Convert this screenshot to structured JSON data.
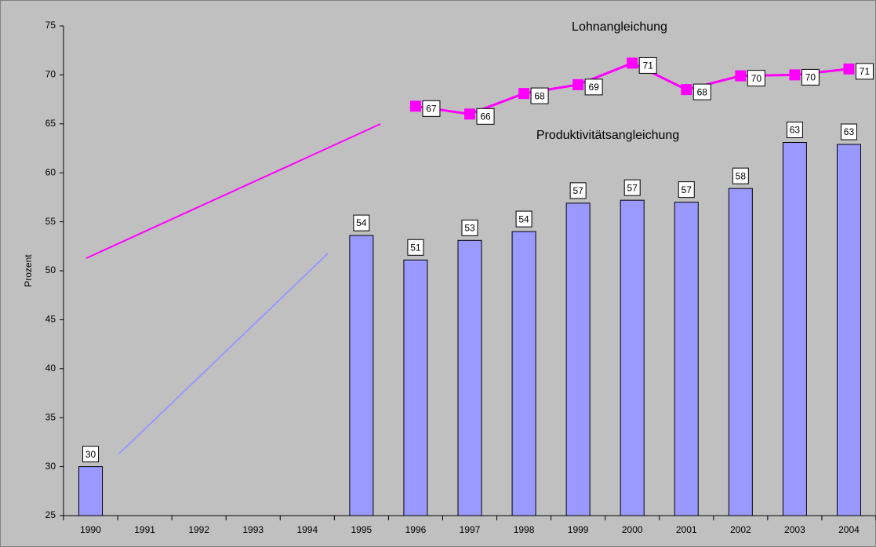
{
  "chart_data": {
    "type": "bar",
    "y_label": "Prozent",
    "annotations": [
      "Lohnangleichung",
      "Produktivitätsangleichung"
    ],
    "categories": [
      "1990",
      "1991",
      "1992",
      "1993",
      "1994",
      "1995",
      "1996",
      "1997",
      "1998",
      "1999",
      "2000",
      "2001",
      "2002",
      "2003",
      "2004"
    ],
    "ylim": [
      25,
      75
    ],
    "yticks": [
      25,
      30,
      35,
      40,
      45,
      50,
      55,
      60,
      65,
      70,
      75
    ],
    "series": [
      {
        "name": "Produktivitätsangleichung",
        "type": "bar",
        "color": "#9999ff",
        "values": [
          30,
          null,
          null,
          null,
          null,
          53.6,
          51.1,
          53.1,
          54,
          56.9,
          57.2,
          57,
          58.4,
          63.1,
          62.9
        ],
        "value_labels": [
          "30",
          null,
          null,
          null,
          null,
          "54",
          "51",
          "53",
          "54",
          "57",
          "57",
          "57",
          "58",
          "63",
          "63"
        ]
      },
      {
        "name": "Lohnangleichung",
        "type": "line",
        "color": "#ff00ff",
        "values": [
          null,
          null,
          null,
          null,
          null,
          null,
          66.8,
          66,
          68.1,
          69,
          71.2,
          68.5,
          69.9,
          70,
          70.6
        ],
        "value_labels": [
          null,
          null,
          null,
          null,
          null,
          null,
          "67",
          "66",
          "68",
          "69",
          "71",
          "68",
          "70",
          "70",
          "71"
        ]
      }
    ]
  }
}
